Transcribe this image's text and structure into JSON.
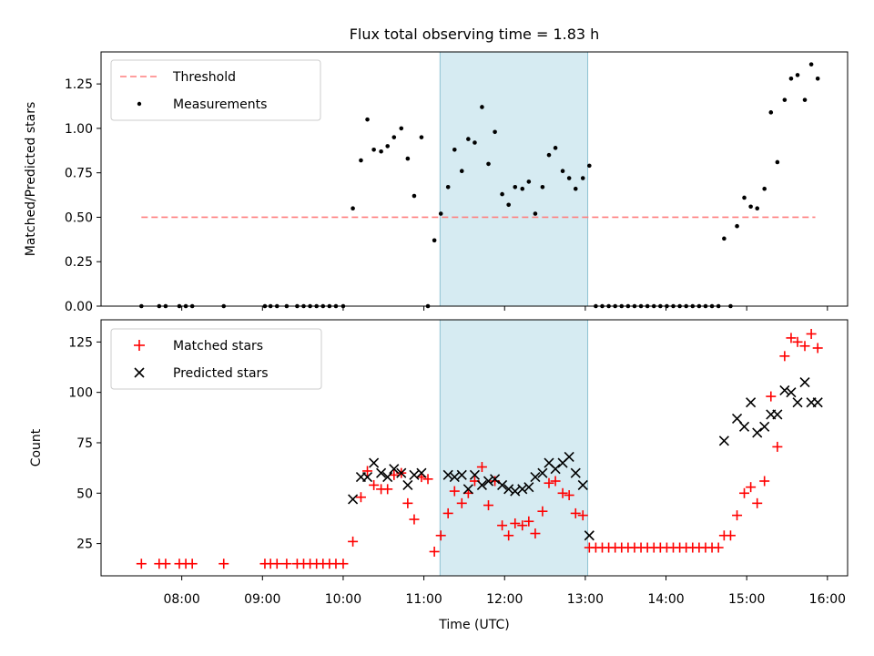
{
  "chart_data": [
    {
      "type": "scatter",
      "title": "Flux total observing time = 1.83 h",
      "xlabel": "",
      "ylabel": "Matched/Predicted stars",
      "xlim": [
        7.0,
        16.25
      ],
      "ylim": [
        0.0,
        1.43
      ],
      "yticks": [
        "0.00",
        "0.25",
        "0.50",
        "0.75",
        "1.00",
        "1.25"
      ],
      "ytick_values": [
        0,
        0.25,
        0.5,
        0.75,
        1.0,
        1.25
      ],
      "shaded_span": [
        11.2,
        13.03
      ],
      "legend_position": "upper left",
      "threshold": {
        "name": "Threshold",
        "value": 0.5,
        "x_range": [
          7.5,
          15.85
        ],
        "color": "#ff7f7f"
      },
      "series": [
        {
          "name": "Measurements",
          "color": "#000000",
          "points": [
            [
              7.5,
              0
            ],
            [
              7.72,
              0
            ],
            [
              7.8,
              0
            ],
            [
              7.97,
              0
            ],
            [
              8.05,
              0
            ],
            [
              8.13,
              0
            ],
            [
              8.52,
              0
            ],
            [
              9.03,
              0
            ],
            [
              9.1,
              0
            ],
            [
              9.18,
              0
            ],
            [
              9.3,
              0
            ],
            [
              9.43,
              0
            ],
            [
              9.51,
              0
            ],
            [
              9.59,
              0
            ],
            [
              9.67,
              0
            ],
            [
              9.75,
              0
            ],
            [
              9.83,
              0
            ],
            [
              9.91,
              0
            ],
            [
              10.0,
              0
            ],
            [
              10.12,
              0.55
            ],
            [
              10.22,
              0.82
            ],
            [
              10.3,
              1.05
            ],
            [
              10.38,
              0.88
            ],
            [
              10.47,
              0.87
            ],
            [
              10.55,
              0.9
            ],
            [
              10.63,
              0.95
            ],
            [
              10.72,
              1.0
            ],
            [
              10.8,
              0.83
            ],
            [
              10.88,
              0.62
            ],
            [
              10.97,
              0.95
            ],
            [
              11.05,
              0.0
            ],
            [
              11.13,
              0.37
            ],
            [
              11.21,
              0.52
            ],
            [
              11.3,
              0.67
            ],
            [
              11.38,
              0.88
            ],
            [
              11.47,
              0.76
            ],
            [
              11.55,
              0.94
            ],
            [
              11.63,
              0.92
            ],
            [
              11.72,
              1.12
            ],
            [
              11.8,
              0.8
            ],
            [
              11.88,
              0.98
            ],
            [
              11.97,
              0.63
            ],
            [
              12.05,
              0.57
            ],
            [
              12.13,
              0.67
            ],
            [
              12.22,
              0.66
            ],
            [
              12.3,
              0.7
            ],
            [
              12.38,
              0.52
            ],
            [
              12.47,
              0.67
            ],
            [
              12.55,
              0.85
            ],
            [
              12.63,
              0.89
            ],
            [
              12.72,
              0.76
            ],
            [
              12.8,
              0.72
            ],
            [
              12.88,
              0.66
            ],
            [
              12.97,
              0.72
            ],
            [
              13.05,
              0.79
            ],
            [
              13.13,
              0
            ],
            [
              13.21,
              0
            ],
            [
              13.29,
              0
            ],
            [
              13.37,
              0
            ],
            [
              13.45,
              0
            ],
            [
              13.53,
              0
            ],
            [
              13.61,
              0
            ],
            [
              13.69,
              0
            ],
            [
              13.77,
              0
            ],
            [
              13.85,
              0
            ],
            [
              13.93,
              0
            ],
            [
              14.01,
              0
            ],
            [
              14.09,
              0
            ],
            [
              14.17,
              0
            ],
            [
              14.25,
              0
            ],
            [
              14.33,
              0
            ],
            [
              14.41,
              0
            ],
            [
              14.49,
              0
            ],
            [
              14.57,
              0
            ],
            [
              14.65,
              0
            ],
            [
              14.72,
              0.38
            ],
            [
              14.8,
              0.0
            ],
            [
              14.88,
              0.45
            ],
            [
              14.97,
              0.61
            ],
            [
              15.05,
              0.56
            ],
            [
              15.13,
              0.55
            ],
            [
              15.22,
              0.66
            ],
            [
              15.3,
              1.09
            ],
            [
              15.38,
              0.81
            ],
            [
              15.47,
              1.16
            ],
            [
              15.55,
              1.28
            ],
            [
              15.63,
              1.3
            ],
            [
              15.72,
              1.16
            ],
            [
              15.8,
              1.36
            ],
            [
              15.88,
              1.28
            ]
          ]
        }
      ]
    },
    {
      "type": "scatter",
      "title": "",
      "xlabel": "Time (UTC)",
      "ylabel": "Count",
      "xlim": [
        7.0,
        16.25
      ],
      "ylim": [
        9,
        136
      ],
      "yticks": [
        "25",
        "50",
        "75",
        "100",
        "125"
      ],
      "ytick_values": [
        25,
        50,
        75,
        100,
        125
      ],
      "xticks": [
        "08:00",
        "09:00",
        "10:00",
        "11:00",
        "12:00",
        "13:00",
        "14:00",
        "15:00",
        "16:00"
      ],
      "xtick_values": [
        8,
        9,
        10,
        11,
        12,
        13,
        14,
        15,
        16
      ],
      "shaded_span": [
        11.2,
        13.03
      ],
      "legend_position": "upper left",
      "series": [
        {
          "name": "Matched stars",
          "marker": "+",
          "color": "#ff0000",
          "points": [
            [
              7.5,
              15
            ],
            [
              7.72,
              15
            ],
            [
              7.8,
              15
            ],
            [
              7.97,
              15
            ],
            [
              8.05,
              15
            ],
            [
              8.13,
              15
            ],
            [
              8.52,
              15
            ],
            [
              9.03,
              15
            ],
            [
              9.1,
              15
            ],
            [
              9.18,
              15
            ],
            [
              9.3,
              15
            ],
            [
              9.43,
              15
            ],
            [
              9.51,
              15
            ],
            [
              9.59,
              15
            ],
            [
              9.67,
              15
            ],
            [
              9.75,
              15
            ],
            [
              9.83,
              15
            ],
            [
              9.91,
              15
            ],
            [
              10.0,
              15
            ],
            [
              10.12,
              26
            ],
            [
              10.22,
              48
            ],
            [
              10.3,
              61
            ],
            [
              10.38,
              54
            ],
            [
              10.47,
              52
            ],
            [
              10.55,
              52
            ],
            [
              10.63,
              59
            ],
            [
              10.72,
              60
            ],
            [
              10.8,
              45
            ],
            [
              10.88,
              37
            ],
            [
              10.97,
              58
            ],
            [
              11.05,
              57
            ],
            [
              11.13,
              21
            ],
            [
              11.21,
              29
            ],
            [
              11.3,
              40
            ],
            [
              11.38,
              51
            ],
            [
              11.47,
              45
            ],
            [
              11.55,
              50
            ],
            [
              11.63,
              56
            ],
            [
              11.72,
              63
            ],
            [
              11.8,
              44
            ],
            [
              11.88,
              56
            ],
            [
              11.97,
              34
            ],
            [
              12.05,
              29
            ],
            [
              12.13,
              35
            ],
            [
              12.22,
              34
            ],
            [
              12.3,
              36
            ],
            [
              12.38,
              30
            ],
            [
              12.47,
              41
            ],
            [
              12.55,
              55
            ],
            [
              12.63,
              56
            ],
            [
              12.72,
              50
            ],
            [
              12.8,
              49
            ],
            [
              12.88,
              40
            ],
            [
              12.97,
              39
            ],
            [
              13.05,
              23
            ],
            [
              13.13,
              23
            ],
            [
              13.21,
              23
            ],
            [
              13.29,
              23
            ],
            [
              13.37,
              23
            ],
            [
              13.45,
              23
            ],
            [
              13.53,
              23
            ],
            [
              13.61,
              23
            ],
            [
              13.69,
              23
            ],
            [
              13.77,
              23
            ],
            [
              13.85,
              23
            ],
            [
              13.93,
              23
            ],
            [
              14.01,
              23
            ],
            [
              14.09,
              23
            ],
            [
              14.17,
              23
            ],
            [
              14.25,
              23
            ],
            [
              14.33,
              23
            ],
            [
              14.41,
              23
            ],
            [
              14.49,
              23
            ],
            [
              14.57,
              23
            ],
            [
              14.65,
              23
            ],
            [
              14.72,
              29
            ],
            [
              14.8,
              29
            ],
            [
              14.88,
              39
            ],
            [
              14.97,
              50
            ],
            [
              15.05,
              53
            ],
            [
              15.13,
              45
            ],
            [
              15.22,
              56
            ],
            [
              15.3,
              98
            ],
            [
              15.38,
              73
            ],
            [
              15.47,
              118
            ],
            [
              15.55,
              127
            ],
            [
              15.63,
              125
            ],
            [
              15.72,
              123
            ],
            [
              15.8,
              129
            ],
            [
              15.88,
              122
            ]
          ]
        },
        {
          "name": "Predicted stars",
          "marker": "x",
          "color": "#000000",
          "points": [
            [
              10.12,
              47
            ],
            [
              10.22,
              58
            ],
            [
              10.3,
              58
            ],
            [
              10.38,
              65
            ],
            [
              10.47,
              60
            ],
            [
              10.55,
              58
            ],
            [
              10.63,
              62
            ],
            [
              10.72,
              60
            ],
            [
              10.8,
              54
            ],
            [
              10.88,
              59
            ],
            [
              10.97,
              60
            ],
            [
              11.3,
              59
            ],
            [
              11.38,
              58
            ],
            [
              11.47,
              59
            ],
            [
              11.55,
              52
            ],
            [
              11.63,
              59
            ],
            [
              11.72,
              54
            ],
            [
              11.8,
              56
            ],
            [
              11.88,
              57
            ],
            [
              11.97,
              54
            ],
            [
              12.05,
              52
            ],
            [
              12.13,
              51
            ],
            [
              12.22,
              52
            ],
            [
              12.3,
              53
            ],
            [
              12.38,
              58
            ],
            [
              12.47,
              60
            ],
            [
              12.55,
              65
            ],
            [
              12.63,
              62
            ],
            [
              12.72,
              65
            ],
            [
              12.8,
              68
            ],
            [
              12.88,
              60
            ],
            [
              12.97,
              54
            ],
            [
              13.05,
              29
            ],
            [
              14.72,
              76
            ],
            [
              14.88,
              87
            ],
            [
              14.97,
              83
            ],
            [
              15.05,
              95
            ],
            [
              15.13,
              80
            ],
            [
              15.22,
              83
            ],
            [
              15.3,
              89
            ],
            [
              15.38,
              89
            ],
            [
              15.47,
              101
            ],
            [
              15.55,
              100
            ],
            [
              15.63,
              95
            ],
            [
              15.72,
              105
            ],
            [
              15.8,
              95
            ],
            [
              15.88,
              95
            ]
          ]
        }
      ]
    }
  ]
}
